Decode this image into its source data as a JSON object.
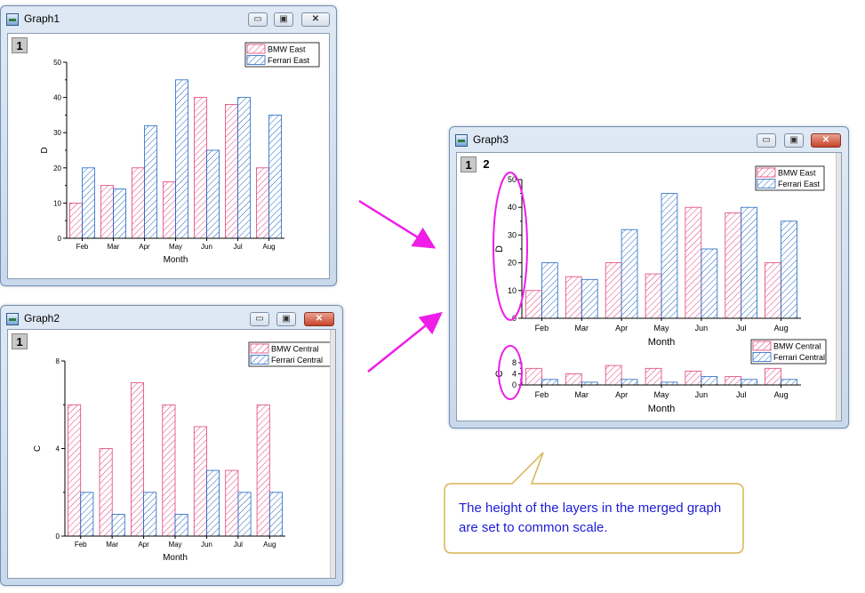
{
  "windows": {
    "graph1": {
      "title": "Graph1",
      "tabs": [
        "1"
      ]
    },
    "graph2": {
      "title": "Graph2",
      "tabs": [
        "1"
      ]
    },
    "graph3": {
      "title": "Graph3",
      "tabs": [
        "1",
        "2"
      ]
    }
  },
  "window_controls": {
    "minimize": "▭",
    "maximize": "▣",
    "close": "✕"
  },
  "callout": {
    "text": "The height of the layers in the merged graph are set to common scale."
  },
  "colors": {
    "bmw": "#e0407a",
    "ferrari": "#2166c4",
    "annotation": "#ee1ee8",
    "callout_border": "#d8b452",
    "callout_text": "#1c1cd8"
  },
  "chart_data": [
    {
      "type": "bar",
      "window": "Graph1",
      "categories": [
        "Feb",
        "Mar",
        "Apr",
        "May",
        "Jun",
        "Jul",
        "Aug"
      ],
      "series": [
        {
          "name": "BMW East",
          "values": [
            10,
            15,
            20,
            16,
            40,
            38,
            20
          ]
        },
        {
          "name": "Ferrari East",
          "values": [
            20,
            14,
            32,
            45,
            25,
            40,
            35
          ]
        }
      ],
      "xlabel": "Month",
      "ylabel": "D",
      "ylim": [
        0,
        50
      ],
      "yticks": [
        "0",
        "10",
        "20",
        "30",
        "40",
        "50"
      ],
      "legend": "top-right",
      "grid": false
    },
    {
      "type": "bar",
      "window": "Graph2",
      "categories": [
        "Feb",
        "Mar",
        "Apr",
        "May",
        "Jun",
        "Jul",
        "Aug"
      ],
      "series": [
        {
          "name": "BMW Central",
          "values": [
            6,
            4,
            7,
            6,
            5,
            3,
            6
          ]
        },
        {
          "name": "Ferrari Central",
          "values": [
            2,
            1,
            2,
            1,
            3,
            2,
            2
          ]
        }
      ],
      "xlabel": "Month",
      "ylabel": "C",
      "ylim": [
        0,
        8
      ],
      "yticks": [
        "0",
        "4",
        "8"
      ],
      "legend": "top-right",
      "grid": false
    },
    {
      "type": "bar",
      "window": "Graph3",
      "layer": "1",
      "categories": [
        "Feb",
        "Mar",
        "Apr",
        "May",
        "Jun",
        "Jul",
        "Aug"
      ],
      "series": [
        {
          "name": "BMW East",
          "values": [
            10,
            15,
            20,
            16,
            40,
            38,
            20
          ]
        },
        {
          "name": "Ferrari East",
          "values": [
            20,
            14,
            32,
            45,
            25,
            40,
            35
          ]
        }
      ],
      "xlabel": "Month",
      "ylabel": "D",
      "ylim": [
        0,
        50
      ],
      "yticks": [
        "0",
        "10",
        "20",
        "30",
        "40",
        "50"
      ],
      "legend": "top-right",
      "grid": false
    },
    {
      "type": "bar",
      "window": "Graph3",
      "layer": "2",
      "categories": [
        "Feb",
        "Mar",
        "Apr",
        "May",
        "Jun",
        "Jul",
        "Aug"
      ],
      "series": [
        {
          "name": "BMW Central",
          "values": [
            6,
            4,
            7,
            6,
            5,
            3,
            6
          ]
        },
        {
          "name": "Ferrari Central",
          "values": [
            2,
            1,
            2,
            1,
            3,
            2,
            2
          ]
        }
      ],
      "xlabel": "Month",
      "ylabel": "C",
      "ylim": [
        0,
        8
      ],
      "yticks": [
        "0",
        "4",
        "8"
      ],
      "legend": "top-right",
      "grid": false
    }
  ]
}
